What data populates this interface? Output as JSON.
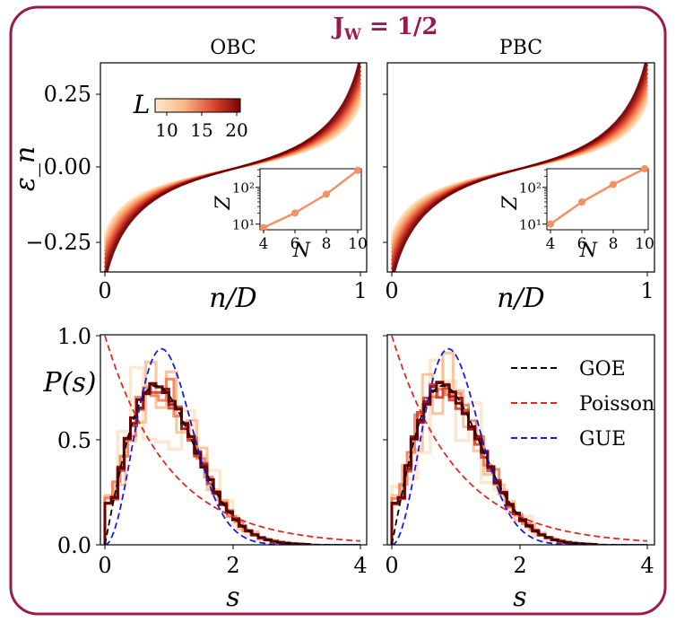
{
  "page_title": "J_W = 1/2",
  "title_parts": {
    "base": "J",
    "sub": "W",
    "rest": " = 1/2"
  },
  "colors": {
    "frame": "#9a1a50",
    "goe": "#000000",
    "poisson": "#e8261e",
    "gue": "#1a1ae6",
    "inset": "#f39162"
  },
  "chart_data": [
    {
      "type": "line",
      "panel": "top-left",
      "title": "OBC",
      "xlabel": "n/D",
      "ylabel": "ε_n",
      "xlim": [
        0,
        1
      ],
      "ylim": [
        -0.34,
        0.35
      ],
      "xticks": [
        "0",
        "1"
      ],
      "yticks": [
        "0.25",
        "0.00",
        "−0.25"
      ],
      "series_description": "sorted energy levels for L = 8 to 20",
      "colorbar": {
        "label": "L",
        "ticks": [
          "10",
          "15",
          "20"
        ],
        "range": [
          8,
          20
        ]
      },
      "inset": {
        "type": "line",
        "xlabel": "N",
        "ylabel": "Z",
        "yscale": "log",
        "x": [
          4,
          6,
          8,
          10
        ],
        "y": [
          8,
          20,
          65,
          290
        ],
        "xticks": [
          "4",
          "6",
          "8",
          "10"
        ],
        "yticks": [
          "10¹",
          "10²"
        ]
      }
    },
    {
      "type": "line",
      "panel": "top-right",
      "title": "PBC",
      "xlabel": "n/D",
      "ylabel": "",
      "xlim": [
        0,
        1
      ],
      "ylim": [
        -0.34,
        0.35
      ],
      "xticks": [
        "0",
        "1"
      ],
      "inset": {
        "type": "line",
        "xlabel": "N",
        "ylabel": "Z",
        "yscale": "log",
        "x": [
          4,
          6,
          8,
          10
        ],
        "y": [
          10,
          40,
          120,
          380
        ],
        "xticks": [
          "4",
          "6",
          "8",
          "10"
        ],
        "yticks": [
          "10¹",
          "10²"
        ]
      }
    },
    {
      "type": "line",
      "panel": "bottom-left",
      "xlabel": "s",
      "ylabel": "P(s)",
      "xlim": [
        0,
        4
      ],
      "ylim": [
        0,
        1
      ],
      "xticks": [
        "0",
        "2",
        "4"
      ],
      "yticks": [
        "1.0",
        "0.5",
        "0.0"
      ],
      "series": [
        {
          "name": "GOE",
          "formula": "(π/2) s exp(−π s²/4)"
        },
        {
          "name": "Poisson",
          "formula": "exp(−s)"
        },
        {
          "name": "GUE",
          "formula": "(32/π²) s² exp(−4 s²/π)"
        }
      ]
    },
    {
      "type": "line",
      "panel": "bottom-right",
      "xlabel": "s",
      "ylabel": "",
      "xlim": [
        0,
        4
      ],
      "ylim": [
        0,
        1
      ],
      "xticks": [
        "0",
        "2",
        "4"
      ],
      "legend": {
        "placement": "top-right",
        "entries": [
          "GOE",
          "Poisson",
          "GUE"
        ]
      }
    }
  ]
}
